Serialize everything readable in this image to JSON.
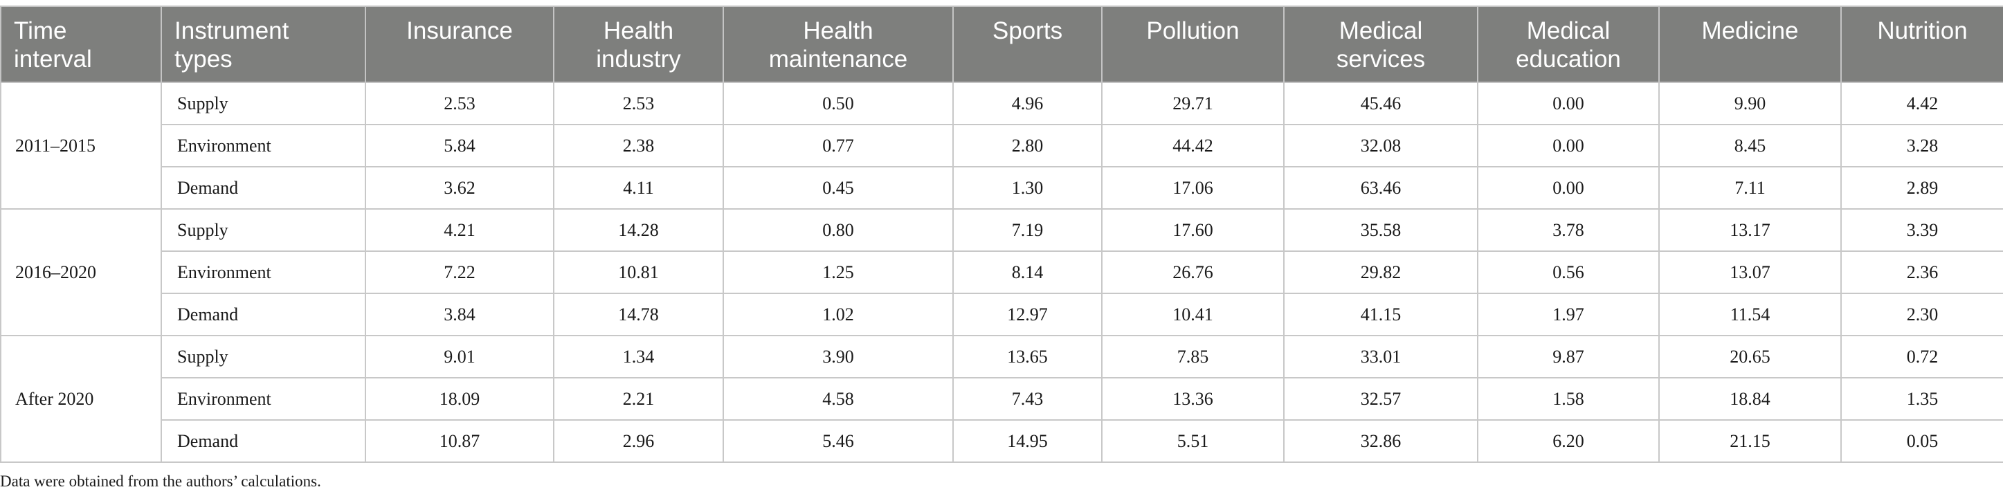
{
  "table": {
    "headers": [
      {
        "line1": "Time",
        "line2": "interval"
      },
      {
        "line1": "Instrument",
        "line2": "types"
      },
      {
        "line1": "Insurance",
        "line2": ""
      },
      {
        "line1": "Health",
        "line2": "industry"
      },
      {
        "line1": "Health",
        "line2": "maintenance"
      },
      {
        "line1": "Sports",
        "line2": ""
      },
      {
        "line1": "Pollution",
        "line2": ""
      },
      {
        "line1": "Medical",
        "line2": "services"
      },
      {
        "line1": "Medical",
        "line2": "education"
      },
      {
        "line1": "Medicine",
        "line2": ""
      },
      {
        "line1": "Nutrition",
        "line2": ""
      }
    ],
    "groups": [
      {
        "period": "2011–2015",
        "rows": [
          {
            "type": "Supply",
            "values": [
              "2.53",
              "2.53",
              "0.50",
              "4.96",
              "29.71",
              "45.46",
              "0.00",
              "9.90",
              "4.42"
            ]
          },
          {
            "type": "Environment",
            "values": [
              "5.84",
              "2.38",
              "0.77",
              "2.80",
              "44.42",
              "32.08",
              "0.00",
              "8.45",
              "3.28"
            ]
          },
          {
            "type": "Demand",
            "values": [
              "3.62",
              "4.11",
              "0.45",
              "1.30",
              "17.06",
              "63.46",
              "0.00",
              "7.11",
              "2.89"
            ]
          }
        ]
      },
      {
        "period": "2016–2020",
        "rows": [
          {
            "type": "Supply",
            "values": [
              "4.21",
              "14.28",
              "0.80",
              "7.19",
              "17.60",
              "35.58",
              "3.78",
              "13.17",
              "3.39"
            ]
          },
          {
            "type": "Environment",
            "values": [
              "7.22",
              "10.81",
              "1.25",
              "8.14",
              "26.76",
              "29.82",
              "0.56",
              "13.07",
              "2.36"
            ]
          },
          {
            "type": "Demand",
            "values": [
              "3.84",
              "14.78",
              "1.02",
              "12.97",
              "10.41",
              "41.15",
              "1.97",
              "11.54",
              "2.30"
            ]
          }
        ]
      },
      {
        "period": "After 2020",
        "rows": [
          {
            "type": "Supply",
            "values": [
              "9.01",
              "1.34",
              "3.90",
              "13.65",
              "7.85",
              "33.01",
              "9.87",
              "20.65",
              "0.72"
            ]
          },
          {
            "type": "Environment",
            "values": [
              "18.09",
              "2.21",
              "4.58",
              "7.43",
              "13.36",
              "32.57",
              "1.58",
              "18.84",
              "1.35"
            ]
          },
          {
            "type": "Demand",
            "values": [
              "10.87",
              "2.96",
              "5.46",
              "14.95",
              "5.51",
              "32.86",
              "6.20",
              "21.15",
              "0.05"
            ]
          }
        ]
      }
    ]
  },
  "footnote": "Data were obtained from the authors’ calculations.",
  "colors": {
    "header_bg": "#7e7f7d",
    "header_text": "#ffffff",
    "grid": "#c8c8c8"
  }
}
